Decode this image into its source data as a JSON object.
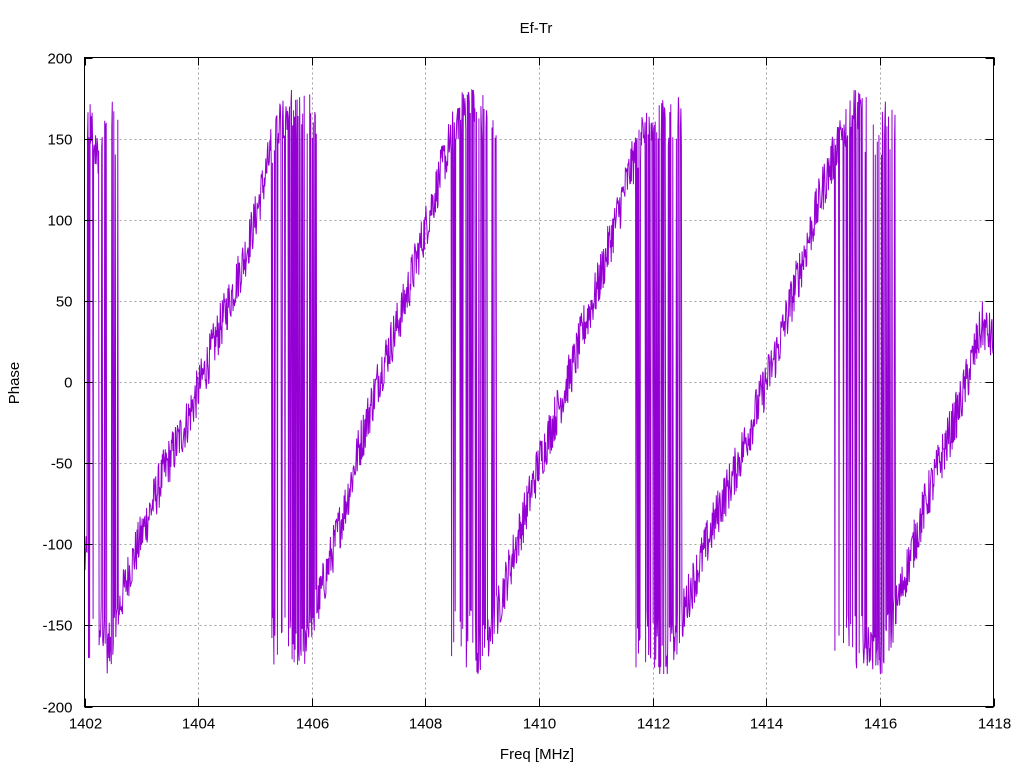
{
  "chart_data": {
    "type": "line",
    "title": "Ef-Tr",
    "xlabel": "Freq [MHz]",
    "ylabel": "Phase",
    "xlim": [
      1402,
      1418
    ],
    "ylim": [
      -200,
      200
    ],
    "xticks": [
      1402,
      1404,
      1406,
      1408,
      1410,
      1412,
      1414,
      1416,
      1418
    ],
    "yticks": [
      -200,
      -150,
      -100,
      -50,
      0,
      50,
      100,
      150,
      200
    ],
    "grid": true,
    "legend": "none",
    "series_color": "#9400d3",
    "sampled": {
      "x": [
        1402.0,
        1402.1,
        1402.2,
        1402.3,
        1402.4,
        1402.5,
        1402.6,
        1402.8,
        1403.0,
        1403.2,
        1403.4,
        1403.6,
        1403.8,
        1404.0,
        1404.2,
        1404.4,
        1404.6,
        1404.8,
        1405.0,
        1405.2,
        1405.4,
        1405.6,
        1405.8,
        1406.0,
        1406.2,
        1406.4,
        1406.6,
        1406.8,
        1407.0,
        1407.2,
        1407.4,
        1407.6,
        1407.8,
        1408.0,
        1408.2,
        1408.4,
        1408.6,
        1408.8,
        1409.0,
        1409.2,
        1409.4,
        1409.6,
        1409.8,
        1410.0,
        1410.2,
        1410.4,
        1410.6,
        1410.8,
        1411.0,
        1411.2,
        1411.4,
        1411.6,
        1411.8,
        1412.0,
        1412.2,
        1412.4,
        1412.6,
        1412.8,
        1413.0,
        1413.2,
        1413.4,
        1413.6,
        1413.8,
        1414.0,
        1414.2,
        1414.4,
        1414.6,
        1414.8,
        1415.0,
        1415.2,
        1415.4,
        1415.6,
        1415.8,
        1416.0,
        1416.2,
        1416.4,
        1416.6,
        1416.8,
        1417.0,
        1417.2,
        1417.4,
        1417.6,
        1417.8,
        1418.0
      ],
      "y": [
        -110,
        160,
        140,
        -150,
        -165,
        -160,
        -140,
        -115,
        -95,
        -75,
        -55,
        -40,
        -25,
        -5,
        15,
        35,
        55,
        75,
        100,
        130,
        160,
        170,
        -170,
        -150,
        -125,
        -100,
        -75,
        -45,
        -20,
        5,
        25,
        45,
        70,
        95,
        120,
        145,
        165,
        170,
        -165,
        -150,
        -125,
        -100,
        -75,
        -50,
        -30,
        -10,
        10,
        35,
        55,
        80,
        105,
        130,
        150,
        165,
        -170,
        -160,
        -135,
        -115,
        -95,
        -75,
        -60,
        -40,
        -20,
        0,
        20,
        45,
        70,
        95,
        120,
        140,
        160,
        170,
        -160,
        -170,
        -150,
        -125,
        -100,
        -75,
        -55,
        -35,
        -15,
        10,
        35,
        25
      ]
    }
  }
}
